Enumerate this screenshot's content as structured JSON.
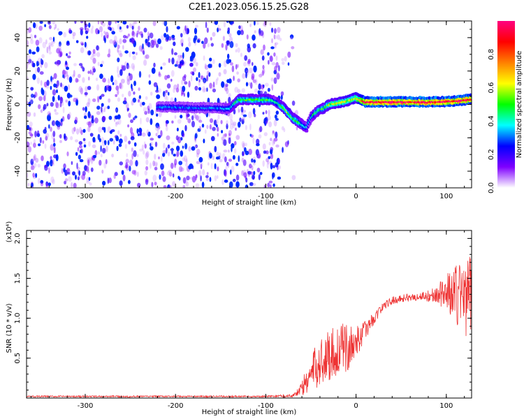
{
  "figure": {
    "title": "C2E1.2023.056.15.25.G28"
  },
  "chart_data": [
    {
      "type": "heatmap",
      "xlabel": "Height of straight line (km)",
      "ylabel": "Frequency (Hz)",
      "xlim": [
        -365,
        128
      ],
      "ylim": [
        -50,
        50
      ],
      "x_ticks": [
        -300,
        -200,
        -100,
        0,
        100
      ],
      "x_tick_labels": [
        "-300",
        "-200",
        "-100",
        "0",
        "100"
      ],
      "y_ticks": [
        -40,
        -20,
        0,
        20,
        40
      ],
      "y_tick_labels": [
        "-40",
        "-20",
        "0",
        "20",
        "40"
      ],
      "grid": false,
      "colorbar": {
        "label": "Normalized spectral amplitude",
        "range": [
          0,
          1
        ],
        "ticks": [
          0.0,
          0.2,
          0.4,
          0.6,
          0.8
        ],
        "tick_labels": [
          "0.0",
          "0.2",
          "0.4",
          "0.6",
          "0.8"
        ],
        "colormap_hex": [
          "#ffffff",
          "#7f00ff",
          "#0000ff",
          "#00ffff",
          "#00ff00",
          "#ffff00",
          "#ff8000",
          "#ff0000",
          "#ff0080"
        ]
      },
      "noise_region": {
        "x_range": [
          -365,
          -85
        ],
        "amplitude_range": [
          0.05,
          0.25
        ]
      },
      "ridge": {
        "x": [
          -220,
          -200,
          -180,
          -160,
          -140,
          -130,
          -120,
          -110,
          -100,
          -95,
          -90,
          -85,
          -80,
          -75,
          -70,
          -65,
          -60,
          -55,
          -50,
          -45,
          -40,
          -35,
          -30,
          -20,
          -10,
          0,
          10,
          30,
          60,
          90,
          110,
          125
        ],
        "freq": [
          -1.5,
          -1.5,
          -2,
          -2,
          -2.5,
          3,
          3,
          3,
          3,
          3,
          2,
          0,
          -2,
          -5,
          -8,
          -10,
          -12,
          -14,
          -8,
          -5,
          -3,
          -2,
          0,
          1,
          2,
          4,
          1.5,
          1.5,
          1.5,
          1.5,
          2,
          3
        ],
        "amplitude": [
          0.3,
          0.3,
          0.3,
          0.3,
          0.35,
          0.5,
          0.5,
          0.5,
          0.5,
          0.45,
          0.4,
          0.45,
          0.55,
          0.55,
          0.5,
          0.5,
          0.4,
          0.35,
          0.35,
          0.45,
          0.5,
          0.5,
          0.55,
          0.6,
          0.6,
          0.6,
          0.95,
          0.98,
          0.98,
          0.98,
          0.95,
          0.95
        ]
      }
    },
    {
      "type": "line",
      "xlabel": "Height of straight line (km)",
      "ylabel": "SNR (10 * v/v)",
      "y_multiplier_label": "(x10⁴)",
      "xlim": [
        -365,
        128
      ],
      "ylim": [
        0,
        2.1
      ],
      "x_ticks": [
        -300,
        -200,
        -100,
        0,
        100
      ],
      "x_tick_labels": [
        "-300",
        "-200",
        "-100",
        "0",
        "100"
      ],
      "y_ticks": [
        0.5,
        1.0,
        1.5,
        2.0
      ],
      "y_tick_labels": [
        "0.5",
        "1.0",
        "1.5",
        "2.0"
      ],
      "grid": false,
      "series": [
        {
          "color": "#ee3333",
          "x": [
            -365,
            -300,
            -200,
            -100,
            -70,
            -60,
            -50,
            -40,
            -30,
            -20,
            -10,
            0,
            10,
            20,
            30,
            40,
            50,
            60,
            70,
            80,
            90,
            100,
            110,
            120,
            128
          ],
          "y": [
            0.02,
            0.02,
            0.02,
            0.02,
            0.03,
            0.12,
            0.3,
            0.45,
            0.55,
            0.6,
            0.62,
            0.7,
            0.85,
            1.0,
            1.15,
            1.22,
            1.25,
            1.26,
            1.27,
            1.28,
            1.3,
            1.32,
            1.3,
            1.3,
            1.3
          ],
          "spread": [
            0.01,
            0.01,
            0.01,
            0.01,
            0.02,
            0.1,
            0.25,
            0.3,
            0.35,
            0.35,
            0.3,
            0.2,
            0.12,
            0.08,
            0.05,
            0.05,
            0.05,
            0.05,
            0.05,
            0.08,
            0.1,
            0.25,
            0.4,
            0.55,
            0.45
          ]
        }
      ]
    }
  ]
}
